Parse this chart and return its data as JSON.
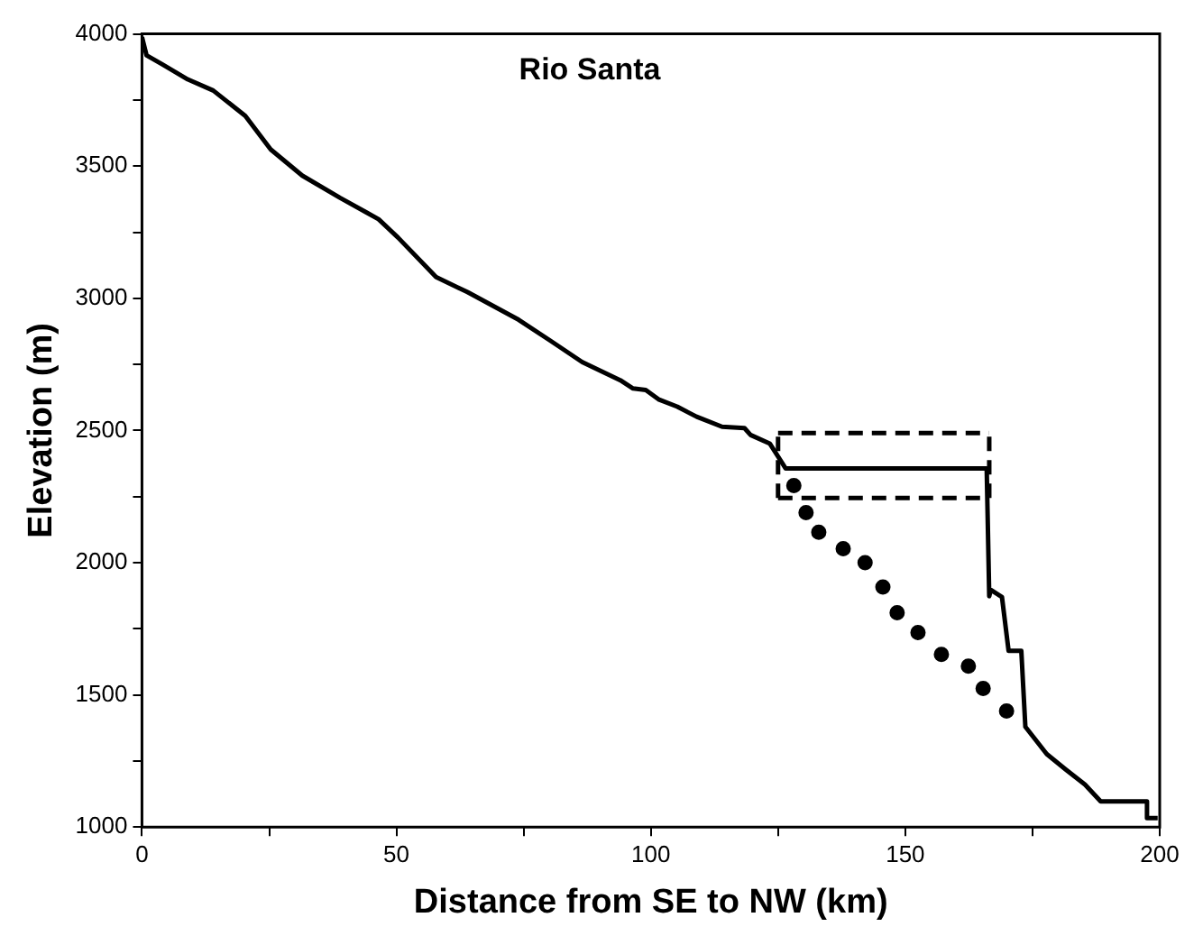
{
  "chart_data": {
    "type": "line",
    "title": "Rio Santa",
    "xlabel": "Distance from SE to NW (km)",
    "ylabel": "Elevation (m)",
    "xlim": [
      0,
      200
    ],
    "ylim": [
      1000,
      4000
    ],
    "xticks": [
      0,
      {
        "value": 25,
        "label": null
      },
      50,
      {
        "value": 75,
        "label": null
      },
      100,
      {
        "value": 125,
        "label": null
      },
      150,
      {
        "value": 175,
        "label": null
      },
      200
    ],
    "yticks": [
      1000,
      {
        "value": 1250,
        "label": null
      },
      1500,
      {
        "value": 1750,
        "label": null
      },
      2000,
      {
        "value": 2250,
        "label": null
      },
      2500,
      {
        "value": 2750,
        "label": null
      },
      3000,
      {
        "value": 3250,
        "label": null
      },
      3500,
      {
        "value": 3750,
        "label": null
      },
      4000
    ],
    "grid": false,
    "legend": false,
    "series": [
      {
        "type": "line",
        "color": "#000000",
        "line_style": "solid",
        "marker": "none",
        "x": [
          0,
          0.9,
          4,
          9,
          14,
          20.3,
          25.3,
          31.5,
          39,
          44,
          46.5,
          50.3,
          57.8,
          64,
          74,
          80.3,
          86.5,
          94,
          96.5,
          99,
          101.5,
          105.2,
          109,
          114,
          118.4,
          119.6,
          123.4,
          126.5,
          166,
          166.5,
          166.8,
          169,
          170.3,
          172.8,
          173.6,
          177.8,
          181.5,
          185.3,
          188.4,
          197.5,
          197.5,
          199.6
        ],
        "values": [
          3988,
          3919,
          3885,
          3828,
          3786,
          3690,
          3563,
          3464,
          3379,
          3326,
          3299,
          3230,
          3080,
          3023,
          2919,
          2839,
          2759,
          2690,
          2659,
          2653,
          2618,
          2590,
          2552,
          2514,
          2509,
          2483,
          2450,
          2356,
          2356,
          1873,
          1897,
          1870,
          1667,
          1667,
          1379,
          1276,
          1218,
          1161,
          1097,
          1097,
          1034,
          1034
        ]
      },
      {
        "type": "scatter",
        "color": "#000000",
        "marker": "circle",
        "x": [
          128.1,
          130.5,
          133,
          137.8,
          142.1,
          145.6,
          148.4,
          152.5,
          157.1,
          162.4,
          165.3,
          169.9
        ],
        "values": [
          2292,
          2189,
          2115,
          2053,
          2000,
          1908,
          1811,
          1736,
          1653,
          1609,
          1524,
          1439
        ]
      },
      {
        "type": "line",
        "color": "#000000",
        "line_style": "dashed",
        "marker": "none",
        "x": [
          125,
          166.5
        ],
        "values": [
          2490,
          2490
        ]
      },
      {
        "type": "line",
        "color": "#000000",
        "line_style": "dashed",
        "marker": "none",
        "x": [
          125,
          166.5
        ],
        "values": [
          2245,
          2245
        ]
      },
      {
        "type": "line",
        "color": "#000000",
        "line_style": "dashed",
        "marker": "none",
        "x": [
          125,
          125
        ],
        "values": [
          2245,
          2490
        ]
      },
      {
        "type": "line",
        "color": "#000000",
        "line_style": "dashed",
        "marker": "none",
        "x": [
          166.5,
          166.5
        ],
        "values": [
          2245,
          2490
        ]
      }
    ]
  }
}
